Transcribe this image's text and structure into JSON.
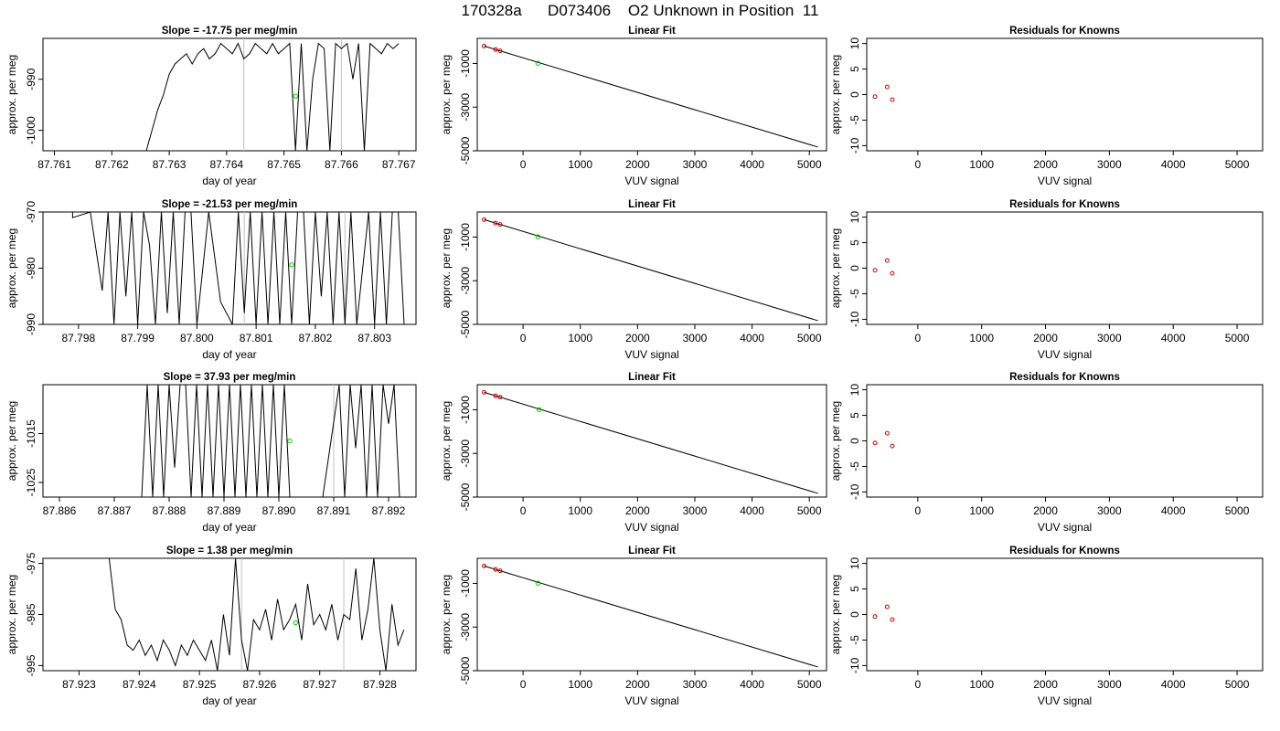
{
  "figure": {
    "title": "170328a      D073406    O2 Unknown in Position  11"
  },
  "colors": {
    "line": "#000000",
    "vertical_marker": "#c0c0c0",
    "unknown_point": "#00cc00",
    "known_point": "#cc0000"
  },
  "chart_data": [
    {
      "type": "line",
      "panel": "time-1",
      "title": "Slope =  -17.75  per meg/min",
      "xlabel": "day of year",
      "ylabel": "approx. per meg",
      "xlim": [
        87.7608,
        87.7673
      ],
      "ylim": [
        -1004,
        -982
      ],
      "xticks": [
        87.761,
        87.762,
        87.763,
        87.764,
        87.765,
        87.766,
        87.767
      ],
      "xtick_labels": [
        "87.761",
        "87.762",
        "87.763",
        "87.764",
        "87.765",
        "87.766",
        "87.767"
      ],
      "yticks": [
        -1000,
        -990
      ],
      "ytick_labels": [
        "-1000",
        "-990"
      ],
      "vlines": [
        87.7643,
        87.766
      ],
      "unknown_point": {
        "x": 87.7652,
        "y": -993.3
      },
      "series": [
        {
          "x": [
            87.7626,
            87.7628,
            87.7629,
            87.763,
            87.7631,
            87.7632,
            87.7633,
            87.7634,
            87.7635,
            87.7636,
            87.7637,
            87.7638,
            87.7639,
            87.764,
            87.7641,
            87.7642,
            87.7643,
            87.7644,
            87.7645,
            87.7646,
            87.7647,
            87.7648,
            87.7649,
            87.765,
            87.7651,
            87.7652,
            87.7653,
            87.7654,
            87.7655,
            87.7656,
            87.7657,
            87.7658,
            87.7659,
            87.766,
            87.7661,
            87.7662,
            87.7663,
            87.7664,
            87.7665,
            87.7666,
            87.7667,
            87.7668,
            87.7669,
            87.767
          ],
          "y": [
            -1004,
            -996,
            -993,
            -989,
            -987,
            -986,
            -985,
            -987,
            -985,
            -984,
            -986,
            -985,
            -983,
            -984,
            -985,
            -983,
            -986,
            -985,
            -983,
            -984,
            -985,
            -983,
            -985,
            -984,
            -983,
            -1004,
            -983,
            -1004,
            -990,
            -983,
            -984,
            -1004,
            -983,
            -984,
            -983,
            -990,
            -983,
            -1004,
            -983,
            -984,
            -985,
            -983,
            -984,
            -983
          ]
        }
      ]
    },
    {
      "type": "line",
      "panel": "fit-1",
      "title": "Linear Fit",
      "xlabel": "VUV signal",
      "ylabel": "approx. per meg",
      "xlim": [
        -800,
        5300
      ],
      "ylim": [
        -5000,
        150
      ],
      "xticks": [
        0,
        1000,
        2000,
        3000,
        4000,
        5000
      ],
      "xtick_labels": [
        "0",
        "1000",
        "2000",
        "3000",
        "4000",
        "5000"
      ],
      "yticks": [
        -5000,
        -3000,
        -1000
      ],
      "ytick_labels": [
        "-5000",
        "-3000",
        "-1000"
      ],
      "fit_line": {
        "x": [
          -680,
          5150
        ],
        "y": [
          -200,
          -4830
        ]
      },
      "known_points": {
        "x": [
          -680,
          -480,
          -400
        ],
        "y": [
          -200,
          -360,
          -420
        ]
      },
      "unknown_point": {
        "x": 260,
        "y": -990
      }
    },
    {
      "type": "scatter",
      "panel": "resid-1",
      "title": "Residuals for Knowns",
      "xlabel": "VUV signal",
      "ylabel": "approx. per meg",
      "xlim": [
        -800,
        5400
      ],
      "ylim": [
        -11,
        11
      ],
      "xticks": [
        0,
        1000,
        2000,
        3000,
        4000,
        5000
      ],
      "xtick_labels": [
        "0",
        "1000",
        "2000",
        "3000",
        "4000",
        "5000"
      ],
      "yticks": [
        -10,
        -5,
        0,
        5,
        10
      ],
      "ytick_labels": [
        "-10",
        "-5",
        "0",
        "5",
        "10"
      ],
      "points": {
        "x": [
          -670,
          -480,
          -400
        ],
        "y": [
          -0.4,
          1.5,
          -1.0
        ]
      }
    },
    {
      "type": "line",
      "panel": "time-2",
      "title": "Slope =  -21.53  per meg/min",
      "xlabel": "day of year",
      "ylabel": "approx. per meg",
      "xlim": [
        87.7974,
        87.8037
      ],
      "ylim": [
        -990,
        -970
      ],
      "xticks": [
        87.798,
        87.799,
        87.8,
        87.801,
        87.802,
        87.803
      ],
      "xtick_labels": [
        "87.798",
        "87.799",
        "87.800",
        "87.801",
        "87.802",
        "87.803"
      ],
      "yticks": [
        -990,
        -980,
        -970
      ],
      "ytick_labels": [
        "-990",
        "-980",
        "-970"
      ],
      "vlines": [
        87.8008,
        87.8025
      ],
      "unknown_point": {
        "x": 87.8016,
        "y": -979.4
      },
      "series": [
        {
          "x": [
            87.7979,
            87.7979,
            87.7982,
            87.7984,
            87.7985,
            87.7986,
            87.7987,
            87.7988,
            87.7989,
            87.799,
            87.7991,
            87.7992,
            87.7993,
            87.7994,
            87.7995,
            87.7996,
            87.7997,
            87.7998,
            87.7999,
            87.8,
            87.8002,
            87.8004,
            87.8006,
            87.8007,
            87.8008,
            87.8009,
            87.801,
            87.8011,
            87.8012,
            87.8013,
            87.8014,
            87.8015,
            87.8016,
            87.8017,
            87.8018,
            87.8019,
            87.802,
            87.8021,
            87.8022,
            87.8023,
            87.8024,
            87.8025,
            87.8026,
            87.8027,
            87.8028,
            87.8029,
            87.803,
            87.8031,
            87.8032,
            87.8033,
            87.8034,
            87.8035
          ],
          "y": [
            -970,
            -971,
            -970,
            -984,
            -970,
            -990,
            -970,
            -985,
            -970,
            -990,
            -970,
            -976,
            -990,
            -970,
            -988,
            -970,
            -990,
            -970,
            -970,
            -990,
            -970,
            -986,
            -990,
            -970,
            -988,
            -970,
            -990,
            -970,
            -990,
            -970,
            -990,
            -970,
            -990,
            -970,
            -970,
            -990,
            -970,
            -985,
            -970,
            -990,
            -970,
            -990,
            -970,
            -990,
            -980,
            -970,
            -990,
            -970,
            -990,
            -970,
            -970,
            -990
          ]
        }
      ]
    },
    {
      "type": "line",
      "panel": "fit-2",
      "title": "Linear Fit",
      "xlabel": "VUV signal",
      "ylabel": "approx. per meg",
      "xlim": [
        -800,
        5300
      ],
      "ylim": [
        -5000,
        150
      ],
      "xticks": [
        0,
        1000,
        2000,
        3000,
        4000,
        5000
      ],
      "xtick_labels": [
        "0",
        "1000",
        "2000",
        "3000",
        "4000",
        "5000"
      ],
      "yticks": [
        -5000,
        -3000,
        -1000
      ],
      "ytick_labels": [
        "-5000",
        "-3000",
        "-1000"
      ],
      "fit_line": {
        "x": [
          -680,
          5150
        ],
        "y": [
          -200,
          -4830
        ]
      },
      "known_points": {
        "x": [
          -680,
          -480,
          -400
        ],
        "y": [
          -200,
          -360,
          -420
        ]
      },
      "unknown_point": {
        "x": 260,
        "y": -990
      }
    },
    {
      "type": "scatter",
      "panel": "resid-2",
      "title": "Residuals for Knowns",
      "xlabel": "VUV signal",
      "ylabel": "approx. per meg",
      "xlim": [
        -800,
        5400
      ],
      "ylim": [
        -11,
        11
      ],
      "xticks": [
        0,
        1000,
        2000,
        3000,
        4000,
        5000
      ],
      "xtick_labels": [
        "0",
        "1000",
        "2000",
        "3000",
        "4000",
        "5000"
      ],
      "yticks": [
        -10,
        -5,
        0,
        5,
        10
      ],
      "ytick_labels": [
        "-10",
        "-5",
        "0",
        "5",
        "10"
      ],
      "points": {
        "x": [
          -670,
          -480,
          -400
        ],
        "y": [
          -0.4,
          1.5,
          -1.0
        ]
      }
    },
    {
      "type": "line",
      "panel": "time-3",
      "title": "Slope =  37.93  per meg/min",
      "xlabel": "day of year",
      "ylabel": "approx. per meg",
      "xlim": [
        87.8857,
        87.8925
      ],
      "ylim": [
        -1028,
        -1005
      ],
      "xticks": [
        87.886,
        87.887,
        87.888,
        87.889,
        87.89,
        87.891,
        87.892
      ],
      "xtick_labels": [
        "87.886",
        "87.887",
        "87.888",
        "87.889",
        "87.890",
        "87.891",
        "87.892"
      ],
      "yticks": [
        -1025,
        -1015
      ],
      "ytick_labels": [
        "-1025",
        "-1015"
      ],
      "vlines": [
        87.891
      ],
      "unknown_point": {
        "x": 87.8902,
        "y": -1016.5
      },
      "series": [
        {
          "x": [
            87.8875,
            87.8876,
            87.8877,
            87.8878,
            87.8879,
            87.888,
            87.8881,
            87.8882,
            87.8883,
            87.8884,
            87.8885,
            87.8886,
            87.8887,
            87.8888,
            87.8889,
            87.889,
            87.8891,
            87.8892,
            87.8893,
            87.8894,
            87.8895,
            87.8896,
            87.8897,
            87.8898,
            87.8899,
            87.89,
            87.8901,
            87.8902,
            87.8903,
            87.8905,
            87.8908,
            87.8911,
            87.8912,
            87.8913,
            87.8914,
            87.8915,
            87.8916,
            87.8917,
            87.8918,
            87.8919,
            87.892,
            87.8921,
            87.8922
          ],
          "y": [
            -1028,
            -1005,
            -1028,
            -1005,
            -1028,
            -1005,
            -1022,
            -1005,
            -1005,
            -1028,
            -1005,
            -1028,
            -1005,
            -1028,
            -1005,
            -1028,
            -1005,
            -1028,
            -1005,
            -1028,
            -1005,
            -1028,
            -1005,
            -1028,
            -1005,
            -1028,
            -1005,
            -1028,
            -1028,
            -1028,
            -1028,
            -1005,
            -1028,
            -1005,
            -1018,
            -1005,
            -1028,
            -1005,
            -1028,
            -1005,
            -1013,
            -1005,
            -1028
          ]
        }
      ]
    },
    {
      "type": "line",
      "panel": "fit-3",
      "title": "Linear Fit",
      "xlabel": "VUV signal",
      "ylabel": "approx. per meg",
      "xlim": [
        -800,
        5300
      ],
      "ylim": [
        -5000,
        150
      ],
      "xticks": [
        0,
        1000,
        2000,
        3000,
        4000,
        5000
      ],
      "xtick_labels": [
        "0",
        "1000",
        "2000",
        "3000",
        "4000",
        "5000"
      ],
      "yticks": [
        -5000,
        -3000,
        -1000
      ],
      "ytick_labels": [
        "-5000",
        "-3000",
        "-1000"
      ],
      "fit_line": {
        "x": [
          -680,
          5150
        ],
        "y": [
          -200,
          -4830
        ]
      },
      "known_points": {
        "x": [
          -680,
          -480,
          -400
        ],
        "y": [
          -200,
          -360,
          -420
        ]
      },
      "unknown_point": {
        "x": 280,
        "y": -990
      }
    },
    {
      "type": "scatter",
      "panel": "resid-3",
      "title": "Residuals for Knowns",
      "xlabel": "VUV signal",
      "ylabel": "approx. per meg",
      "xlim": [
        -800,
        5400
      ],
      "ylim": [
        -11,
        11
      ],
      "xticks": [
        0,
        1000,
        2000,
        3000,
        4000,
        5000
      ],
      "xtick_labels": [
        "0",
        "1000",
        "2000",
        "3000",
        "4000",
        "5000"
      ],
      "yticks": [
        -10,
        -5,
        0,
        5,
        10
      ],
      "ytick_labels": [
        "-10",
        "-5",
        "0",
        "5",
        "10"
      ],
      "points": {
        "x": [
          -670,
          -480,
          -400
        ],
        "y": [
          -0.4,
          1.5,
          -1.0
        ]
      }
    },
    {
      "type": "line",
      "panel": "time-4",
      "title": "Slope =  1.38  per meg/min",
      "xlabel": "day of year",
      "ylabel": "approx. per meg",
      "xlim": [
        87.9224,
        87.9286
      ],
      "ylim": [
        -996,
        -974
      ],
      "xticks": [
        87.923,
        87.924,
        87.925,
        87.926,
        87.927,
        87.928
      ],
      "xtick_labels": [
        "87.923",
        "87.924",
        "87.925",
        "87.926",
        "87.927",
        "87.928"
      ],
      "yticks": [
        -995,
        -985,
        -975
      ],
      "ytick_labels": [
        "-995",
        "-985",
        "-975"
      ],
      "vlines": [
        87.9257,
        87.9274
      ],
      "unknown_point": {
        "x": 87.9266,
        "y": -986.6
      },
      "series": [
        {
          "x": [
            87.9235,
            87.9236,
            87.9237,
            87.9238,
            87.9239,
            87.924,
            87.9241,
            87.9242,
            87.9243,
            87.9244,
            87.9245,
            87.9246,
            87.9247,
            87.9248,
            87.9249,
            87.925,
            87.9251,
            87.9252,
            87.9253,
            87.9254,
            87.9255,
            87.9256,
            87.9257,
            87.9258,
            87.9259,
            87.926,
            87.9261,
            87.9262,
            87.9263,
            87.9264,
            87.9265,
            87.9266,
            87.9267,
            87.9268,
            87.9269,
            87.927,
            87.9271,
            87.9272,
            87.9273,
            87.9274,
            87.9275,
            87.9276,
            87.9277,
            87.9278,
            87.9279,
            87.928,
            87.9281,
            87.9282,
            87.9283,
            87.9284
          ],
          "y": [
            -974,
            -984,
            -986,
            -991,
            -992,
            -990,
            -993,
            -991,
            -994,
            -990,
            -992,
            -995,
            -991,
            -993,
            -990,
            -992,
            -994,
            -990,
            -996,
            -985,
            -993,
            -974,
            -990,
            -996,
            -986,
            -988,
            -984,
            -990,
            -982,
            -988,
            -986,
            -983,
            -990,
            -979,
            -987,
            -985,
            -988,
            -983,
            -990,
            -985,
            -986,
            -976,
            -990,
            -984,
            -974,
            -988,
            -996,
            -983,
            -991,
            -988
          ]
        }
      ]
    },
    {
      "type": "line",
      "panel": "fit-4",
      "title": "Linear Fit",
      "xlabel": "VUV signal",
      "ylabel": "approx. per meg",
      "xlim": [
        -800,
        5300
      ],
      "ylim": [
        -5000,
        150
      ],
      "xticks": [
        0,
        1000,
        2000,
        3000,
        4000,
        5000
      ],
      "xtick_labels": [
        "0",
        "1000",
        "2000",
        "3000",
        "4000",
        "5000"
      ],
      "yticks": [
        -5000,
        -3000,
        -1000
      ],
      "ytick_labels": [
        "-5000",
        "-3000",
        "-1000"
      ],
      "fit_line": {
        "x": [
          -680,
          5150
        ],
        "y": [
          -200,
          -4830
        ]
      },
      "known_points": {
        "x": [
          -680,
          -480,
          -400
        ],
        "y": [
          -200,
          -360,
          -420
        ]
      },
      "unknown_point": {
        "x": 260,
        "y": -990
      }
    },
    {
      "type": "scatter",
      "panel": "resid-4",
      "title": "Residuals for Knowns",
      "xlabel": "VUV signal",
      "ylabel": "approx. per meg",
      "xlim": [
        -800,
        5400
      ],
      "ylim": [
        -11,
        11
      ],
      "xticks": [
        0,
        1000,
        2000,
        3000,
        4000,
        5000
      ],
      "xtick_labels": [
        "0",
        "1000",
        "2000",
        "3000",
        "4000",
        "5000"
      ],
      "yticks": [
        -10,
        -5,
        0,
        5,
        10
      ],
      "ytick_labels": [
        "-10",
        "-5",
        "0",
        "5",
        "10"
      ],
      "points": {
        "x": [
          -670,
          -480,
          -400
        ],
        "y": [
          -0.4,
          1.5,
          -1.0
        ]
      }
    }
  ]
}
